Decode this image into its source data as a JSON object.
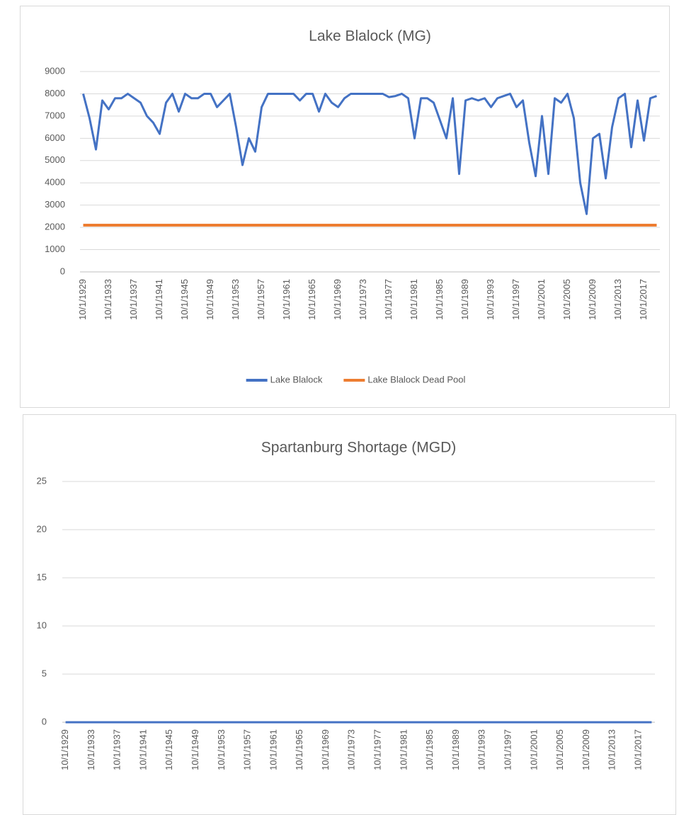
{
  "chart_data": [
    {
      "type": "line",
      "title": "Lake Blalock (MG)",
      "categories": [
        "10/1/1929",
        null,
        null,
        null,
        "10/1/1933",
        null,
        null,
        null,
        "10/1/1937",
        null,
        null,
        null,
        "10/1/1941",
        null,
        null,
        null,
        "10/1/1945",
        null,
        null,
        null,
        "10/1/1949",
        null,
        null,
        null,
        "10/1/1953",
        null,
        null,
        null,
        "10/1/1957",
        null,
        null,
        null,
        "10/1/1961",
        null,
        null,
        null,
        "10/1/1965",
        null,
        null,
        null,
        "10/1/1969",
        null,
        null,
        null,
        "10/1/1973",
        null,
        null,
        null,
        "10/1/1977",
        null,
        null,
        null,
        "10/1/1981",
        null,
        null,
        null,
        "10/1/1985",
        null,
        null,
        null,
        "10/1/1989",
        null,
        null,
        null,
        "10/1/1993",
        null,
        null,
        null,
        "10/1/1997",
        null,
        null,
        null,
        "10/1/2001",
        null,
        null,
        null,
        "10/1/2005",
        null,
        null,
        null,
        "10/1/2009",
        null,
        null,
        null,
        "10/1/2013",
        null,
        null,
        null,
        "10/1/2017",
        null,
        null
      ],
      "series": [
        {
          "name": "Lake Blalock",
          "color": "#4472c4",
          "values": [
            8000,
            6900,
            5500,
            7700,
            7300,
            7800,
            7800,
            8000,
            7800,
            7600,
            7000,
            6700,
            6200,
            7600,
            8000,
            7200,
            8000,
            7800,
            7800,
            8000,
            8000,
            7400,
            7700,
            8000,
            6500,
            4800,
            6000,
            5400,
            7400,
            8000,
            8000,
            8000,
            8000,
            8000,
            7700,
            8000,
            8000,
            7200,
            8000,
            7600,
            7400,
            7800,
            8000,
            8000,
            8000,
            8000,
            8000,
            8000,
            7850,
            7900,
            8000,
            7800,
            6000,
            7800,
            7800,
            7600,
            6800,
            6000,
            7800,
            4400,
            7700,
            7800,
            7700,
            7800,
            7400,
            7800,
            7900,
            8000,
            7400,
            7700,
            5800,
            4300,
            7000,
            4400,
            7800,
            7600,
            8000,
            6900,
            4000,
            2600,
            6000,
            6200,
            4200,
            6500,
            7800,
            8000,
            5600,
            7700,
            5900,
            7800,
            7900
          ]
        },
        {
          "name": "Lake Blalock Dead Pool",
          "color": "#ed7d31",
          "values": [
            2100,
            2100,
            2100,
            2100,
            2100,
            2100,
            2100,
            2100,
            2100,
            2100,
            2100,
            2100,
            2100,
            2100,
            2100,
            2100,
            2100,
            2100,
            2100,
            2100,
            2100,
            2100,
            2100,
            2100,
            2100,
            2100,
            2100,
            2100,
            2100,
            2100,
            2100,
            2100,
            2100,
            2100,
            2100,
            2100,
            2100,
            2100,
            2100,
            2100,
            2100,
            2100,
            2100,
            2100,
            2100,
            2100,
            2100,
            2100,
            2100,
            2100,
            2100,
            2100,
            2100,
            2100,
            2100,
            2100,
            2100,
            2100,
            2100,
            2100,
            2100,
            2100,
            2100,
            2100,
            2100,
            2100,
            2100,
            2100,
            2100,
            2100,
            2100,
            2100,
            2100,
            2100,
            2100,
            2100,
            2100,
            2100,
            2100,
            2100,
            2100,
            2100,
            2100,
            2100,
            2100,
            2100,
            2100,
            2100,
            2100,
            2100,
            2100
          ]
        }
      ],
      "ylim": [
        0,
        9000
      ],
      "yticks": [
        0,
        1000,
        2000,
        3000,
        4000,
        5000,
        6000,
        7000,
        8000,
        9000
      ],
      "grid": true,
      "legend": "bottom"
    },
    {
      "type": "line",
      "title": "Spartanburg Shortage (MGD)",
      "categories": [
        "10/1/1929",
        null,
        null,
        null,
        "10/1/1933",
        null,
        null,
        null,
        "10/1/1937",
        null,
        null,
        null,
        "10/1/1941",
        null,
        null,
        null,
        "10/1/1945",
        null,
        null,
        null,
        "10/1/1949",
        null,
        null,
        null,
        "10/1/1953",
        null,
        null,
        null,
        "10/1/1957",
        null,
        null,
        null,
        "10/1/1961",
        null,
        null,
        null,
        "10/1/1965",
        null,
        null,
        null,
        "10/1/1969",
        null,
        null,
        null,
        "10/1/1973",
        null,
        null,
        null,
        "10/1/1977",
        null,
        null,
        null,
        "10/1/1981",
        null,
        null,
        null,
        "10/1/1985",
        null,
        null,
        null,
        "10/1/1989",
        null,
        null,
        null,
        "10/1/1993",
        null,
        null,
        null,
        "10/1/1997",
        null,
        null,
        null,
        "10/1/2001",
        null,
        null,
        null,
        "10/1/2005",
        null,
        null,
        null,
        "10/1/2009",
        null,
        null,
        null,
        "10/1/2013",
        null,
        null,
        null,
        "10/1/2017",
        null,
        null
      ],
      "series": [
        {
          "color": "#4472c4",
          "values": [
            0,
            0,
            0,
            0,
            0,
            0,
            0,
            0,
            0,
            0,
            0,
            0,
            0,
            0,
            0,
            0,
            0,
            0,
            0,
            0,
            0,
            0,
            0,
            0,
            0,
            0,
            0,
            0,
            0,
            0,
            0,
            0,
            0,
            0,
            0,
            0,
            0,
            0,
            0,
            0,
            0,
            0,
            0,
            0,
            0,
            0,
            0,
            0,
            0,
            0,
            0,
            0,
            0,
            0,
            0,
            0,
            0,
            0,
            0,
            0,
            0,
            0,
            0,
            0,
            0,
            0,
            0,
            0,
            0,
            0,
            0,
            0,
            0,
            0,
            0,
            0,
            0,
            0,
            0,
            0,
            0,
            0,
            0,
            0,
            0,
            0,
            0,
            0,
            0,
            0,
            0
          ]
        }
      ],
      "ylim": [
        0,
        25
      ],
      "yticks": [
        0,
        5,
        10,
        15,
        20,
        25
      ],
      "grid": true
    }
  ]
}
